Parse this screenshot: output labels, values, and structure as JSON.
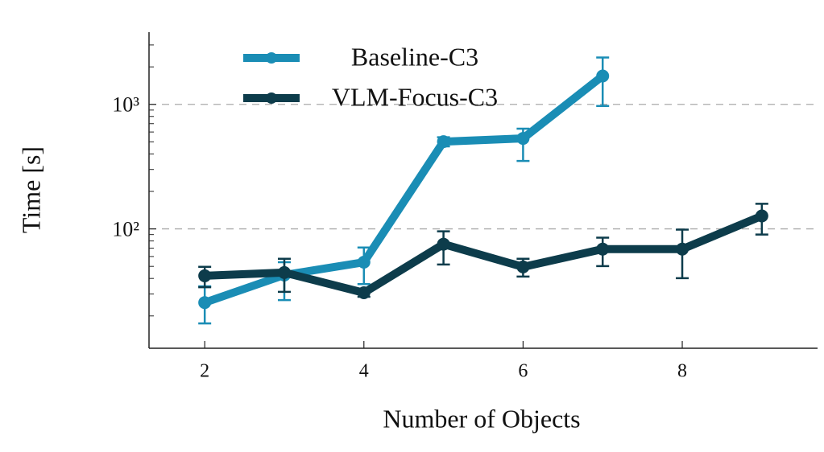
{
  "chart_data": {
    "type": "line",
    "x_label": "Number of Objects",
    "y_label": "Time [s]",
    "log_y": true,
    "grid": "y-major-dashed",
    "legend": "top-left",
    "xlim": [
      1.3,
      9.7
    ],
    "xticks": [
      2,
      4,
      6,
      8
    ],
    "ylim": [
      11,
      3800
    ],
    "yticks": [
      {
        "value": 100,
        "label": "10²"
      },
      {
        "value": 1000,
        "label": "10³"
      }
    ],
    "yminor_ticks": [
      20,
      30,
      40,
      50,
      60,
      70,
      80,
      90,
      200,
      300,
      400,
      500,
      600,
      700,
      800,
      900,
      2000,
      3000
    ],
    "series": [
      {
        "name": "Baseline-C3",
        "color": "#1a8db5",
        "x": [
          2,
          3,
          4,
          5,
          6,
          7
        ],
        "values": [
          25.6,
          42.6,
          54,
          502,
          533,
          1690
        ],
        "lower": [
          17.4,
          26.8,
          36,
          460,
          351,
          970
        ],
        "upper": [
          34.6,
          54,
          70.8,
          545,
          638,
          2380
        ]
      },
      {
        "name": "VLM-Focus-C3",
        "color": "#0d3c4b",
        "x": [
          2,
          3,
          4,
          5,
          6,
          7,
          8,
          9
        ],
        "values": [
          42,
          44.6,
          30.7,
          75.4,
          49.5,
          68.8,
          68.8,
          127
        ],
        "lower": [
          34,
          31.2,
          28.5,
          51.8,
          41.4,
          50.2,
          40.2,
          90
        ],
        "upper": [
          49.6,
          57.5,
          33,
          95.6,
          57.5,
          85,
          98.6,
          159
        ]
      }
    ]
  }
}
